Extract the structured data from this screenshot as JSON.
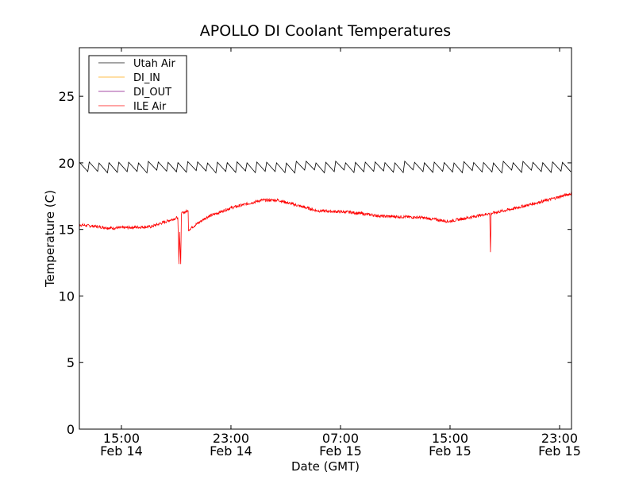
{
  "chart_data": {
    "type": "line",
    "title": "APOLLO DI Coolant Temperatures",
    "xlabel": "Date (GMT)",
    "ylabel": "Temperature (C)",
    "x_units": "hours since 00:00 Feb 14 (GMT)",
    "xlim": [
      11.93,
      47.87
    ],
    "ylim": [
      0,
      28.65
    ],
    "yticks": [
      0,
      5,
      10,
      15,
      20,
      25
    ],
    "xticks": [
      {
        "value": 15,
        "time": "15:00",
        "date": "Feb 14"
      },
      {
        "value": 23,
        "time": "23:00",
        "date": "Feb 14"
      },
      {
        "value": 31,
        "time": "07:00",
        "date": "Feb 15"
      },
      {
        "value": 39,
        "time": "15:00",
        "date": "Feb 15"
      },
      {
        "value": 47,
        "time": "23:00",
        "date": "Feb 15"
      }
    ],
    "grid": false,
    "legend_position": "top-left",
    "series": [
      {
        "name": "Utah Air",
        "color": "#000000",
        "sawtooth": {
          "start": 11.93,
          "end": 47.87,
          "period": 0.72,
          "low": 19.35,
          "high": 20.05
        }
      },
      {
        "name": "DI_IN",
        "color": "#ffa500",
        "x": [],
        "y": []
      },
      {
        "name": "DI_OUT",
        "color": "#800080",
        "x": [],
        "y": []
      },
      {
        "name": "ILE Air",
        "color": "#ff0000",
        "x": [
          11.93,
          14.25,
          17.15,
          19.12,
          19.2,
          19.25,
          19.33,
          19.38,
          19.41,
          19.87,
          19.9,
          19.93,
          21.2,
          22.94,
          25.26,
          26.42,
          29.32,
          31.64,
          33.96,
          36.86,
          38.9,
          40.9,
          41.9,
          41.95,
          42.0,
          43.8,
          46.1,
          47.87
        ],
        "y": [
          15.35,
          15.1,
          15.2,
          15.9,
          12.4,
          14.8,
          12.4,
          16.1,
          16.2,
          16.4,
          14.9,
          15.0,
          15.9,
          16.6,
          17.2,
          17.2,
          16.4,
          16.3,
          16.0,
          15.9,
          15.6,
          16.0,
          16.2,
          13.3,
          16.2,
          16.6,
          17.2,
          17.7
        ]
      }
    ]
  }
}
